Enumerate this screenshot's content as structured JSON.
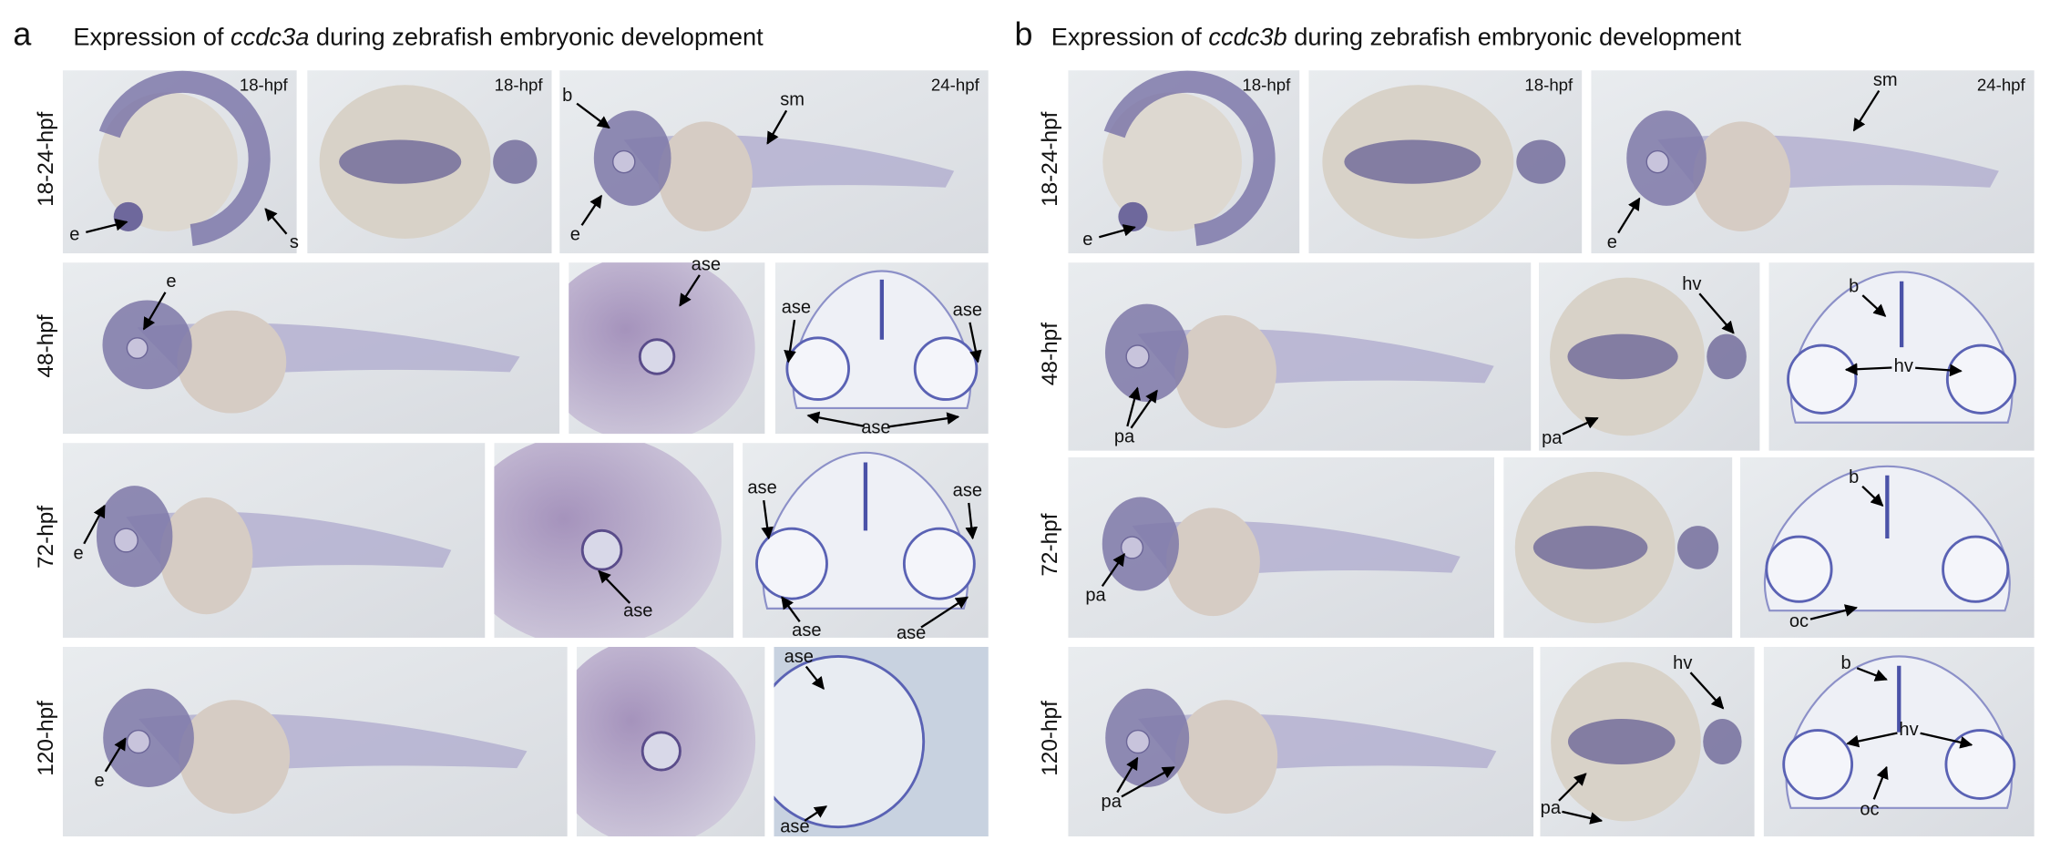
{
  "panels": [
    {
      "letter": "a",
      "title_prefix": "Expression of ",
      "gene": "ccdc3a",
      "title_suffix": " during zebrafish embryonic development",
      "rows": [
        {
          "label": "18-24-hpf",
          "tiles": [
            {
              "stage": "18-hpf",
              "labels": [
                "e",
                "s"
              ]
            },
            {
              "stage": "18-hpf",
              "labels": []
            },
            {
              "stage": "24-hpf",
              "labels": [
                "b",
                "sm",
                "e"
              ]
            }
          ]
        },
        {
          "label": "48-hpf",
          "tiles": [
            {
              "labels": [
                "e"
              ]
            },
            {
              "labels": [
                "ase"
              ]
            },
            {
              "labels": [
                "ase",
                "ase",
                "ase"
              ]
            }
          ]
        },
        {
          "label": "72-hpf",
          "tiles": [
            {
              "labels": [
                "e"
              ]
            },
            {
              "labels": [
                "ase"
              ]
            },
            {
              "labels": [
                "ase",
                "ase",
                "ase",
                "ase"
              ]
            }
          ]
        },
        {
          "label": "120-hpf",
          "tiles": [
            {
              "labels": [
                "e"
              ]
            },
            {
              "labels": []
            },
            {
              "labels": [
                "ase",
                "ase"
              ]
            }
          ]
        }
      ]
    },
    {
      "letter": "b",
      "title_prefix": "Expression of ",
      "gene": "ccdc3b",
      "title_suffix": " during zebrafish embryonic development",
      "rows": [
        {
          "label": "18-24-hpf",
          "tiles": [
            {
              "stage": "18-hpf",
              "labels": [
                "e"
              ]
            },
            {
              "stage": "18-hpf",
              "labels": []
            },
            {
              "stage": "24-hpf",
              "labels": [
                "sm",
                "e"
              ]
            }
          ]
        },
        {
          "label": "48-hpf",
          "tiles": [
            {
              "labels": [
                "pa"
              ]
            },
            {
              "labels": [
                "hv",
                "pa"
              ]
            },
            {
              "labels": [
                "b",
                "hv"
              ]
            }
          ]
        },
        {
          "label": "72-hpf",
          "tiles": [
            {
              "labels": [
                "pa"
              ]
            },
            {
              "labels": []
            },
            {
              "labels": [
                "b",
                "oc"
              ]
            }
          ]
        },
        {
          "label": "120-hpf",
          "tiles": [
            {
              "labels": [
                "pa"
              ]
            },
            {
              "labels": [
                "hv",
                "pa"
              ]
            },
            {
              "labels": [
                "b",
                "hv",
                "oc"
              ]
            }
          ]
        }
      ]
    }
  ]
}
